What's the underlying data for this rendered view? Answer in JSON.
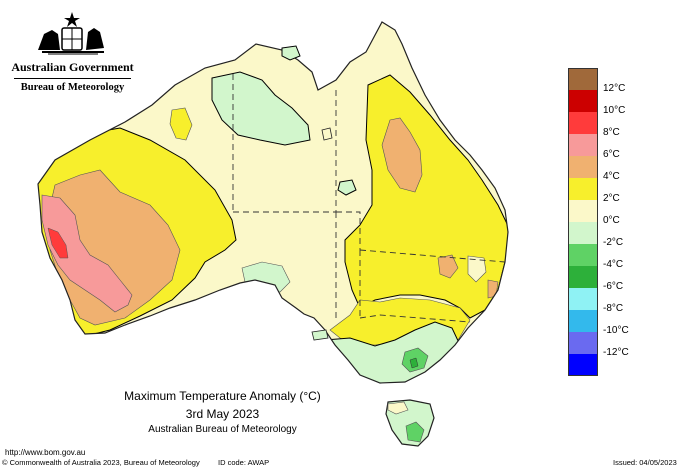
{
  "header": {
    "government": "Australian Government",
    "bureau": "Bureau of Meteorology"
  },
  "legend": {
    "unit": "°C",
    "items": [
      {
        "label": "12°C",
        "color": "#a0693a"
      },
      {
        "label": "10°C",
        "color": "#cc0000"
      },
      {
        "label": "8°C",
        "color": "#ff3b3b"
      },
      {
        "label": "6°C",
        "color": "#f79a9a"
      },
      {
        "label": "4°C",
        "color": "#f0b170"
      },
      {
        "label": "2°C",
        "color": "#f7ef2c"
      },
      {
        "label": "0°C",
        "color": "#fbf8c9"
      },
      {
        "label": "-2°C",
        "color": "#d2f6cc"
      },
      {
        "label": "-4°C",
        "color": "#5fd265"
      },
      {
        "label": "-6°C",
        "color": "#2db03a"
      },
      {
        "label": "-8°C",
        "color": "#8ff2f4"
      },
      {
        "label": "-10°C",
        "color": "#33b9ec"
      },
      {
        "label": "-12°C",
        "color": "#6a6af0"
      },
      {
        "label": "",
        "color": "#0000ff"
      }
    ]
  },
  "caption": {
    "title": "Maximum Temperature Anomaly (°C)",
    "date": "3rd May 2023",
    "source": "Australian Bureau of Meteorology"
  },
  "footer": {
    "url": "http://www.bom.gov.au",
    "copyright": "© Commonwealth of Australia 2023, Bureau of Meteorology",
    "id_code": "ID code: AWAP",
    "issued": "Issued: 04/05/2023"
  }
}
